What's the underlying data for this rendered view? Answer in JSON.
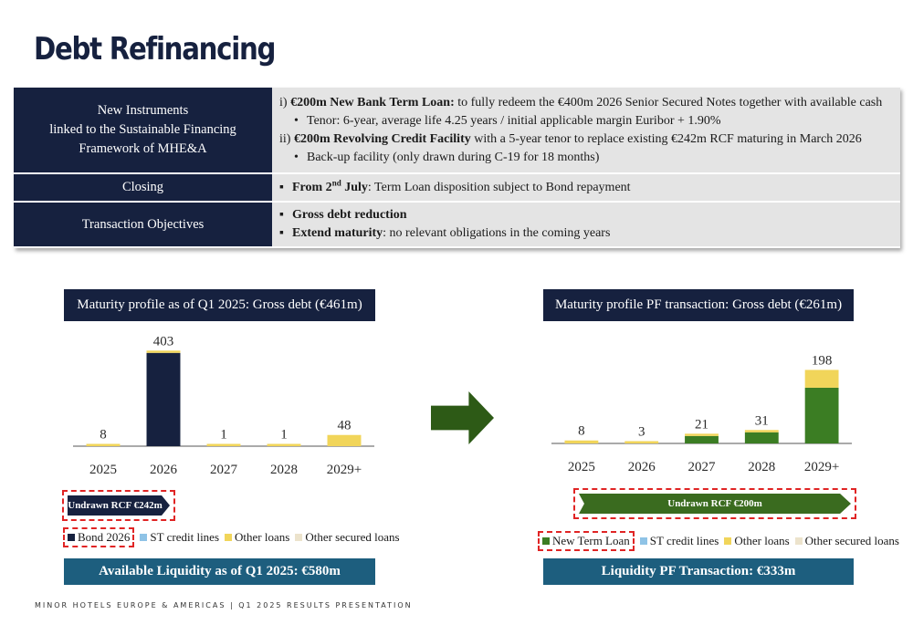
{
  "page": {
    "title": "Debt Refinancing",
    "footer": "MINOR HOTELS EUROPE & AMERICAS  |  Q1 2025 RESULTS PRESENTATION"
  },
  "table": {
    "rows": [
      {
        "label": [
          "New Instruments",
          "linked to the Sustainable Financing",
          "Framework of MHE&A"
        ],
        "lines": [
          {
            "prefix": "i) ",
            "bold": "€200m New Bank Term Loan:",
            "text": " to fully redeem the €400m 2026 Senior Secured Notes together with available cash"
          },
          {
            "text": "Tenor: 6-year, average life 4.25 years / initial applicable margin Euribor + 1.90%"
          },
          {
            "prefix": "ii) ",
            "bold": "€200m Revolving Credit Facility",
            "text": " with a 5-year tenor to replace existing €242m RCF maturing in March 2026"
          },
          {
            "text": "Back-up facility (only drawn during C-19 for 18 months)"
          }
        ]
      },
      {
        "label": "Closing",
        "line": {
          "bold_a": "From 2",
          "sup": "nd",
          "bold_b": " July",
          "text": ": Term Loan disposition subject to Bond repayment"
        }
      },
      {
        "label": "Transaction Objectives",
        "lines": [
          {
            "bold": "Gross debt reduction",
            "text": ""
          },
          {
            "bold": "Extend maturity",
            "text": ": no relevant obligations in the coming years"
          }
        ]
      }
    ]
  },
  "left_panel": {
    "title": "Maturity profile as of Q1 2025: Gross debt (€461m)",
    "rcf_label": "Undrawn RCF €242m",
    "legend": [
      "Bond 2026",
      "ST credit lines",
      "Other loans",
      "Other secured loans"
    ],
    "liquidity": "Available Liquidity as of Q1 2025: €580m"
  },
  "right_panel": {
    "title": "Maturity profile PF transaction: Gross debt (€261m)",
    "rcf_label": "Undrawn RCF €200m",
    "legend": [
      "New Term Loan",
      "ST credit lines",
      "Other loans",
      "Other secured loans"
    ],
    "liquidity": "Liquidity PF Transaction: €333m"
  },
  "colors": {
    "navy": "#16213f",
    "green": "#3b7d23",
    "light_blue": "#8fc3e6",
    "yellow": "#f1d55a",
    "beige": "#ece3cc",
    "teal": "#1d5e7e",
    "red_dash": "#e02424"
  },
  "chart_data": [
    {
      "type": "bar",
      "title": "Maturity profile as of Q1 2025: Gross debt (€461m)",
      "categories": [
        "2025",
        "2026",
        "2027",
        "2028",
        "2029+"
      ],
      "totals": [
        8,
        403,
        1,
        1,
        48
      ],
      "series": [
        {
          "name": "Bond 2026",
          "values": [
            0,
            400,
            0,
            0,
            0
          ]
        },
        {
          "name": "ST credit lines",
          "values": [
            0,
            0,
            0,
            0,
            0
          ]
        },
        {
          "name": "Other loans",
          "values": [
            8,
            3,
            1,
            1,
            48
          ]
        },
        {
          "name": "Other secured loans",
          "values": [
            0,
            0,
            0,
            0,
            0
          ]
        }
      ],
      "ylim": [
        0,
        403
      ]
    },
    {
      "type": "bar",
      "title": "Maturity profile PF transaction: Gross debt (€261m)",
      "categories": [
        "2025",
        "2026",
        "2027",
        "2028",
        "2029+"
      ],
      "totals": [
        8,
        3,
        21,
        31,
        198
      ],
      "series": [
        {
          "name": "New Term Loan",
          "values": [
            0,
            0,
            20,
            30,
            150
          ]
        },
        {
          "name": "ST credit lines",
          "values": [
            0,
            0,
            0,
            0,
            0
          ]
        },
        {
          "name": "Other loans",
          "values": [
            8,
            3,
            1,
            1,
            48
          ]
        },
        {
          "name": "Other secured loans",
          "values": [
            0,
            0,
            0,
            0,
            0
          ]
        }
      ],
      "ylim": [
        0,
        403
      ]
    }
  ]
}
